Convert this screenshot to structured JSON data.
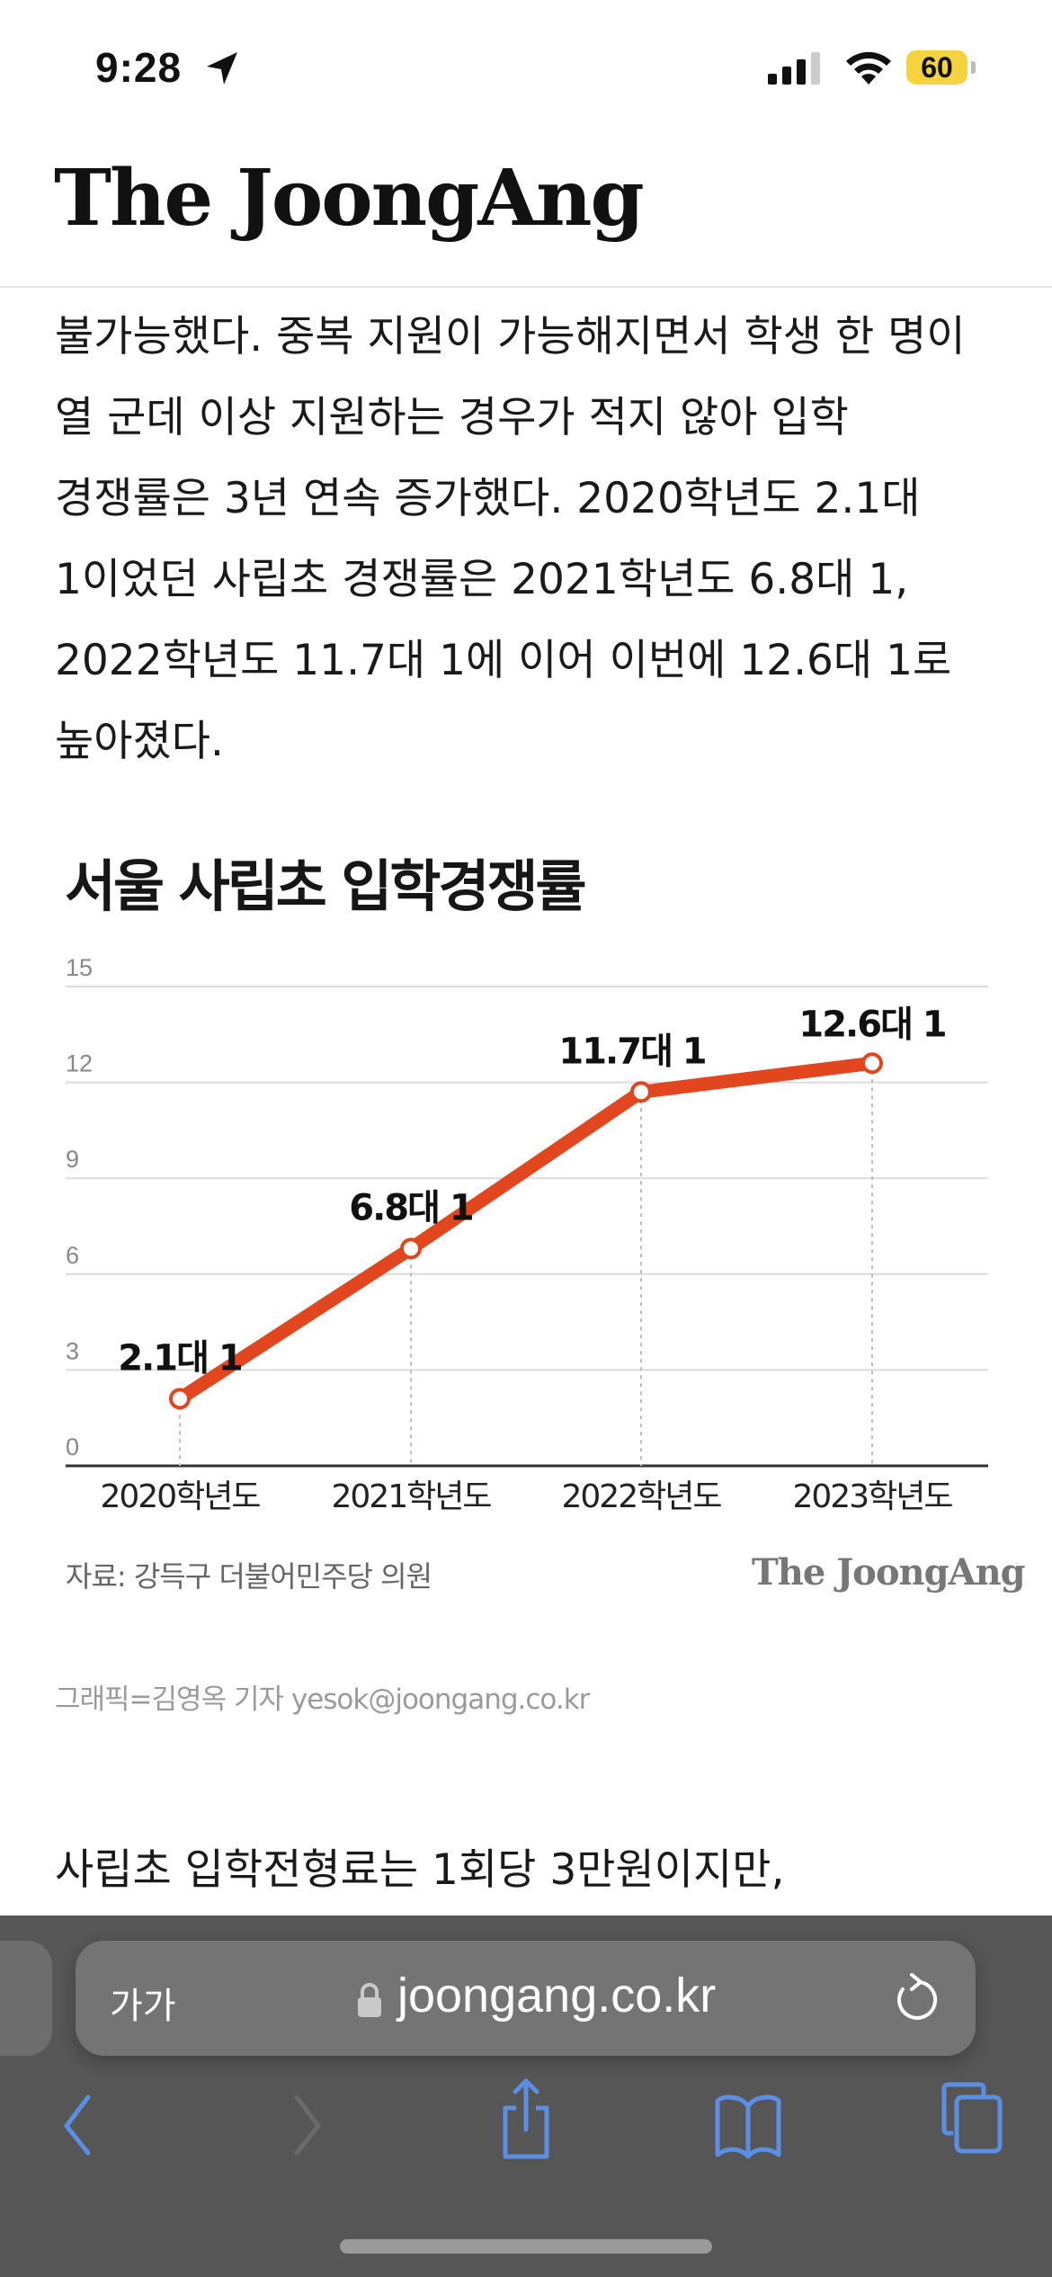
{
  "status_bar": {
    "time": "9:28",
    "battery": "60",
    "battery_color": "#f4d33e"
  },
  "header": {
    "logo": "The JoongAng"
  },
  "article": {
    "lines": [
      "불가능했다. 중복 지원이 가능해지면서 학생 한 명이",
      "열 군데 이상 지원하는 경우가 적지 않아 입학",
      "경쟁률은 3년 연속 증가했다. 2020학년도 2.1대",
      "1이었던 사립초 경쟁률은 2021학년도 6.8대 1,",
      "2022학년도 11.7대 1에 이어 이번에 12.6대 1로",
      "높아졌다."
    ],
    "caption": "그래픽=김영옥 기자 yesok@joongang.co.kr",
    "next_paragraph": "사립초 입학전형료는 1회당 3만원이지만,"
  },
  "chart_data": {
    "type": "line",
    "title": "서울 사립초 입학경쟁률",
    "categories": [
      "2020학년도",
      "2021학년도",
      "2022학년도",
      "2023학년도"
    ],
    "values": [
      2.1,
      6.8,
      11.7,
      12.6
    ],
    "data_labels": [
      "2.1대 1",
      "6.8대 1",
      "11.7대 1",
      "12.6대 1"
    ],
    "yticks": [
      0,
      3,
      6,
      9,
      12,
      15
    ],
    "ylim": [
      0,
      15
    ],
    "grid": true,
    "line_color": "#e2461f",
    "source": "자료: 강득구 더불어민주당 의원",
    "logo": "The JoongAng"
  },
  "browser": {
    "text_size_button": "가가",
    "url": "joongang.co.kr",
    "accent_color": "#5b8fe6",
    "icons": [
      "back-icon",
      "forward-icon",
      "share-icon",
      "bookmarks-icon",
      "tabs-icon",
      "lock-icon",
      "reload-icon"
    ]
  }
}
